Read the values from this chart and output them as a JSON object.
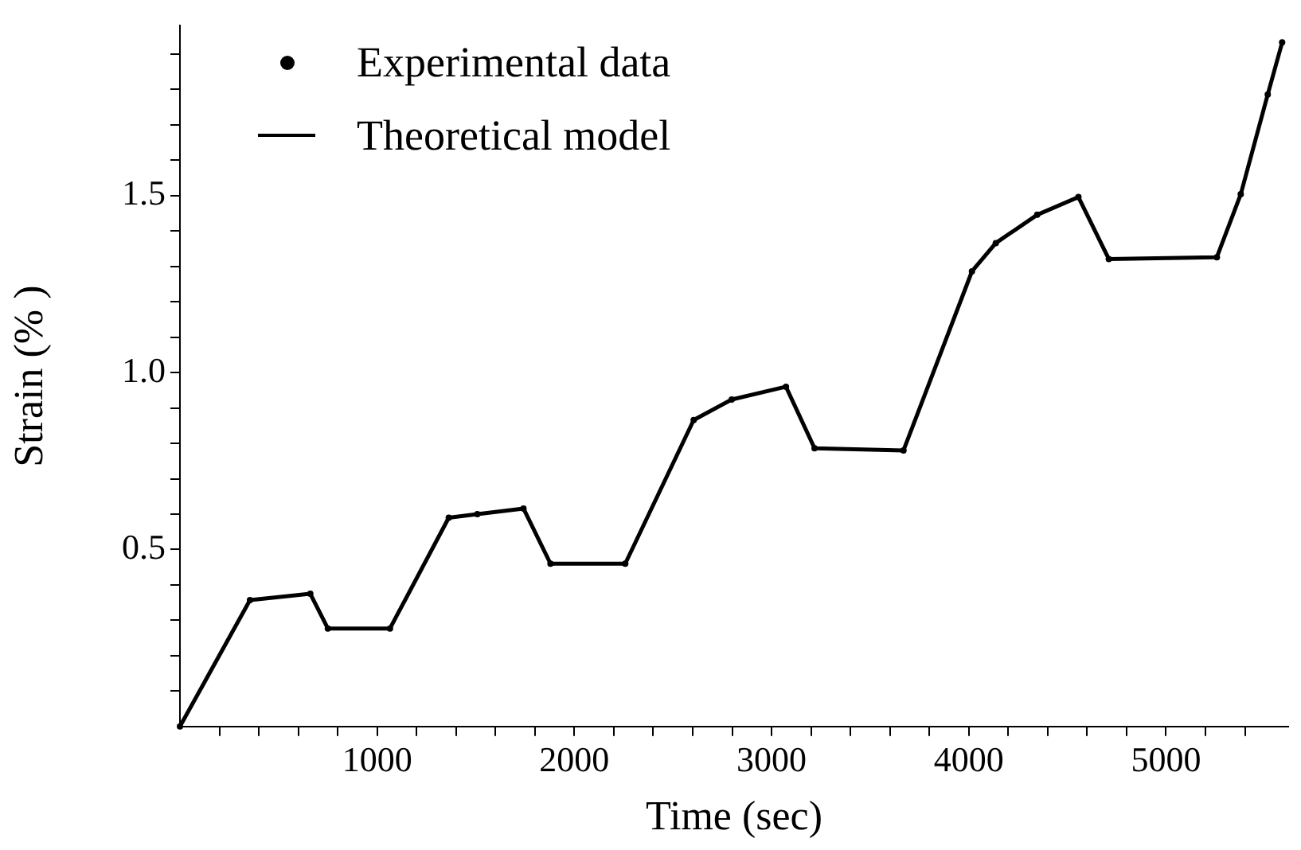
{
  "chart_data": {
    "type": "line",
    "xlabel": "Time (sec)",
    "ylabel": "Strain (% )",
    "x": [
      0,
      355,
      661,
      750,
      1065,
      1363,
      1508,
      1742,
      1879,
      2258,
      2605,
      2798,
      3073,
      3218,
      3669,
      4016,
      4137,
      4347,
      4556,
      4710,
      5258,
      5379,
      5516,
      5589
    ],
    "series": [
      {
        "name": "Experimental data",
        "type": "scatter",
        "marker": "circle",
        "color": "#000000",
        "values": [
          0,
          0.357,
          0.375,
          0.277,
          0.277,
          0.59,
          0.6,
          0.616,
          0.46,
          0.46,
          0.866,
          0.924,
          0.96,
          0.786,
          0.78,
          1.286,
          1.366,
          1.446,
          1.496,
          1.321,
          1.326,
          1.504,
          1.786,
          1.933
        ]
      },
      {
        "name": "Theoretical model",
        "marker": "none",
        "line_style": "solid",
        "color": "#000000",
        "values": [
          0,
          0.357,
          0.375,
          0.277,
          0.277,
          0.59,
          0.6,
          0.616,
          0.46,
          0.46,
          0.866,
          0.924,
          0.96,
          0.786,
          0.78,
          1.286,
          1.366,
          1.446,
          1.496,
          1.321,
          1.326,
          1.504,
          1.786,
          1.933
        ]
      }
    ],
    "xlim": [
      0,
      5620
    ],
    "ylim": [
      0,
      1.98
    ],
    "xticks": [
      {
        "value": 200,
        "label": null
      },
      {
        "value": 400,
        "label": null
      },
      {
        "value": 600,
        "label": null
      },
      {
        "value": 800,
        "label": null
      },
      1000,
      {
        "value": 1200,
        "label": null
      },
      {
        "value": 1400,
        "label": null
      },
      {
        "value": 1600,
        "label": null
      },
      {
        "value": 1800,
        "label": null
      },
      2000,
      {
        "value": 2200,
        "label": null
      },
      {
        "value": 2400,
        "label": null
      },
      {
        "value": 2600,
        "label": null
      },
      {
        "value": 2800,
        "label": null
      },
      3000,
      {
        "value": 3200,
        "label": null
      },
      {
        "value": 3400,
        "label": null
      },
      {
        "value": 3600,
        "label": null
      },
      {
        "value": 3800,
        "label": null
      },
      4000,
      {
        "value": 4200,
        "label": null
      },
      {
        "value": 4400,
        "label": null
      },
      {
        "value": 4600,
        "label": null
      },
      {
        "value": 4800,
        "label": null
      },
      5000,
      {
        "value": 5200,
        "label": null
      },
      {
        "value": 5400,
        "label": null
      }
    ],
    "yticks": [
      {
        "value": 0.1,
        "label": null
      },
      {
        "value": 0.2,
        "label": null
      },
      {
        "value": 0.3,
        "label": null
      },
      {
        "value": 0.4,
        "label": null
      },
      {
        "value": 0.5,
        "label": "0.5"
      },
      {
        "value": 0.6,
        "label": null
      },
      {
        "value": 0.7,
        "label": null
      },
      {
        "value": 0.8,
        "label": null
      },
      {
        "value": 0.9,
        "label": null
      },
      {
        "value": 1,
        "label": "1.0"
      },
      {
        "value": 1.1,
        "label": null
      },
      {
        "value": 1.2,
        "label": null
      },
      {
        "value": 1.3,
        "label": null
      },
      {
        "value": 1.4,
        "label": null
      },
      {
        "value": 1.5,
        "label": "1.5"
      },
      {
        "value": 1.6,
        "label": null
      },
      {
        "value": 1.7,
        "label": null
      },
      {
        "value": 1.8,
        "label": null
      },
      {
        "value": 1.9,
        "label": null
      }
    ],
    "grid": false,
    "legend": "top left"
  }
}
